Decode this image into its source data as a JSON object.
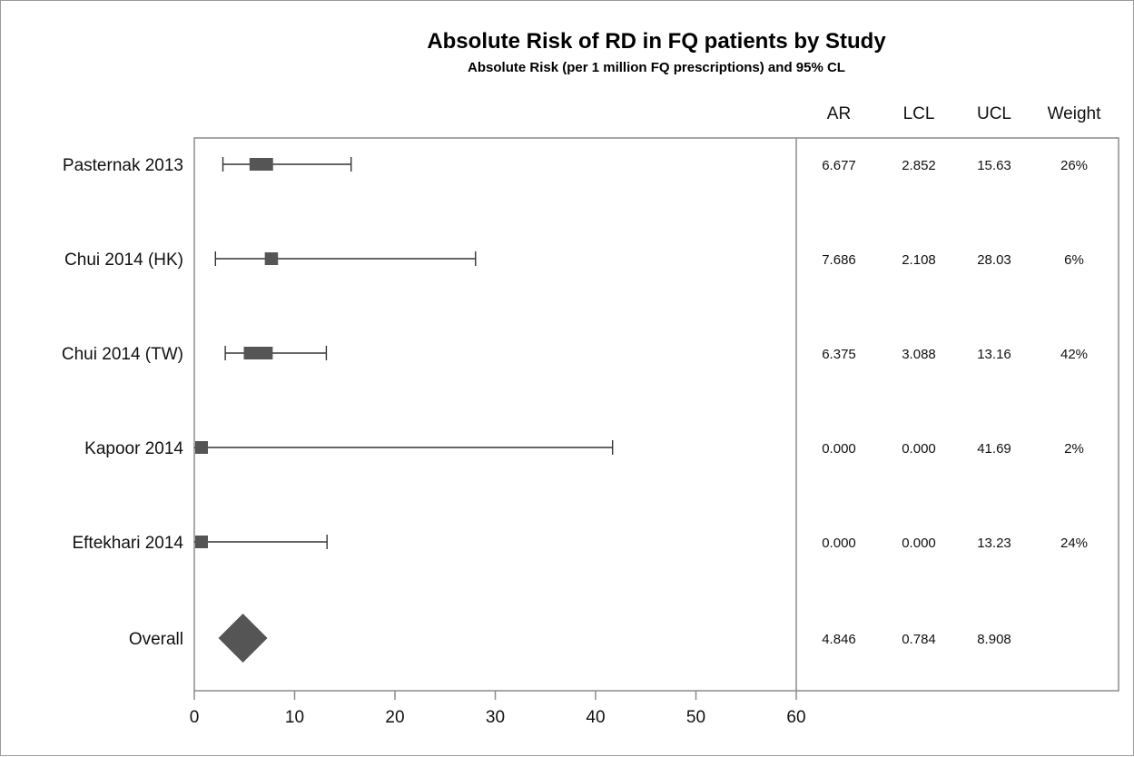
{
  "chart_data": {
    "type": "forest",
    "title": "Absolute Risk of RD in FQ patients by Study",
    "subtitle": "Absolute Risk (per 1 million FQ prescriptions) and 95% CL",
    "columns": [
      "AR",
      "LCL",
      "UCL",
      "Weight"
    ],
    "xlim": [
      0,
      60
    ],
    "xticks": [
      0,
      10,
      20,
      30,
      40,
      50,
      60
    ],
    "xtick_labels": [
      "0",
      "10",
      "20",
      "30",
      "40",
      "50",
      "60"
    ],
    "colors": {
      "marker": "#555555",
      "line": "#333333",
      "axis": "#8c8c8c"
    },
    "rows": [
      {
        "label": "Pasternak 2013",
        "ar": 6.677,
        "lcl": 2.852,
        "ucl": 15.63,
        "weight": 0.26,
        "ar_text": "6.677",
        "lcl_text": "2.852",
        "ucl_text": "15.63",
        "weight_text": "26%"
      },
      {
        "label": "Chui 2014  (HK)",
        "ar": 7.686,
        "lcl": 2.108,
        "ucl": 28.03,
        "weight": 0.06,
        "ar_text": "7.686",
        "lcl_text": "2.108",
        "ucl_text": "28.03",
        "weight_text": "6%"
      },
      {
        "label": "Chui 2014 (TW)",
        "ar": 6.375,
        "lcl": 3.088,
        "ucl": 13.16,
        "weight": 0.42,
        "ar_text": "6.375",
        "lcl_text": "3.088",
        "ucl_text": "13.16",
        "weight_text": "42%"
      },
      {
        "label": "Kapoor  2014",
        "ar": 0.0,
        "lcl": 0.0,
        "ucl": 41.69,
        "weight": 0.02,
        "ar_text": "0.000",
        "lcl_text": "0.000",
        "ucl_text": "41.69",
        "weight_text": "2%"
      },
      {
        "label": "Eftekhari 2014",
        "ar": 0.0,
        "lcl": 0.0,
        "ucl": 13.23,
        "weight": 0.24,
        "ar_text": "0.000",
        "lcl_text": "0.000",
        "ucl_text": "13.23",
        "weight_text": "24%"
      }
    ],
    "overall": {
      "label": "Overall",
      "ar": 4.846,
      "lcl": 0.784,
      "ucl": 8.908,
      "ar_text": "4.846",
      "lcl_text": "0.784",
      "ucl_text": "8.908"
    }
  }
}
